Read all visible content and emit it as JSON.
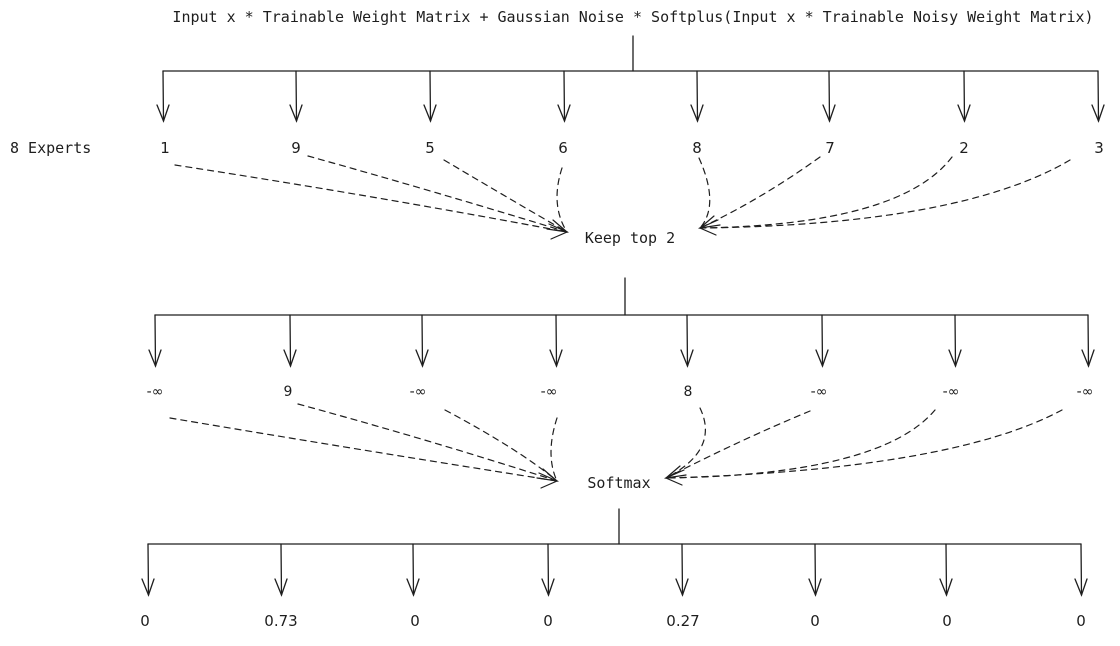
{
  "formula": "Input x * Trainable Weight Matrix + Gaussian Noise * Softplus(Input x * Trainable Noisy Weight Matrix)",
  "experts_label": "8 Experts",
  "expert_scores": [
    "1",
    "9",
    "5",
    "6",
    "8",
    "7",
    "2",
    "3"
  ],
  "keep_label": "Keep top 2",
  "masked_scores": [
    "-∞",
    "9",
    "-∞",
    "-∞",
    "8",
    "-∞",
    "-∞",
    "-∞"
  ],
  "softmax_label": "Softmax",
  "probabilities": [
    "0",
    "0.73",
    "0",
    "0",
    "0.27",
    "0",
    "0",
    "0"
  ]
}
